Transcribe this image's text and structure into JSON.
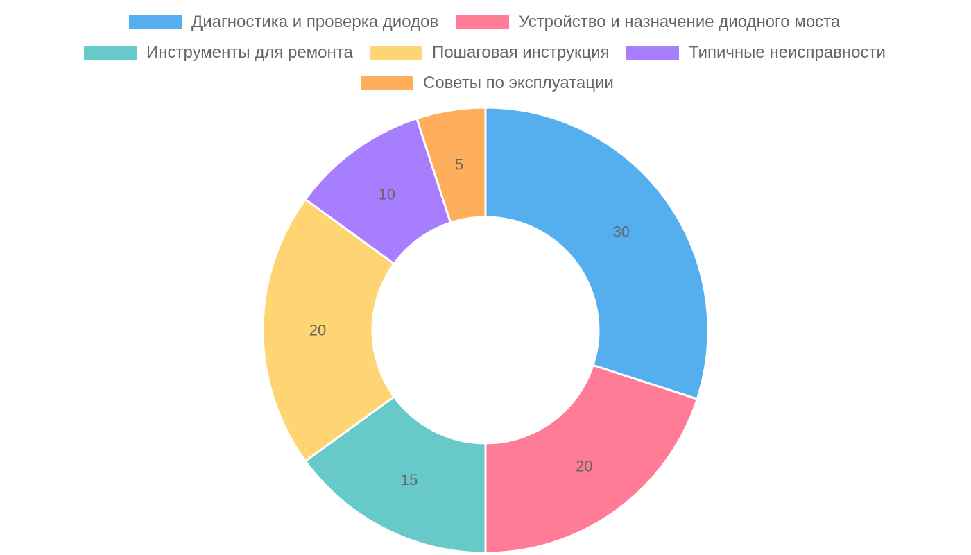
{
  "chart_data": {
    "type": "pie",
    "variant": "doughnut",
    "categories": [
      "Диагностика и проверка диодов",
      "Устройство и назначение диодного моста",
      "Инструменты для ремонта",
      "Пошаговая инструкция",
      "Типичные неисправности",
      "Советы по эксплуатации"
    ],
    "values": [
      30,
      20,
      15,
      20,
      10,
      5
    ],
    "data_labels": [
      "30",
      "20",
      "15",
      "20",
      "10",
      "5"
    ],
    "colors": [
      "#55aeee",
      "#ff7b96",
      "#68c9c9",
      "#ffd574",
      "#a77ffe",
      "#ffae5c"
    ],
    "legend_position": "top",
    "start_angle": "top, clockwise"
  }
}
